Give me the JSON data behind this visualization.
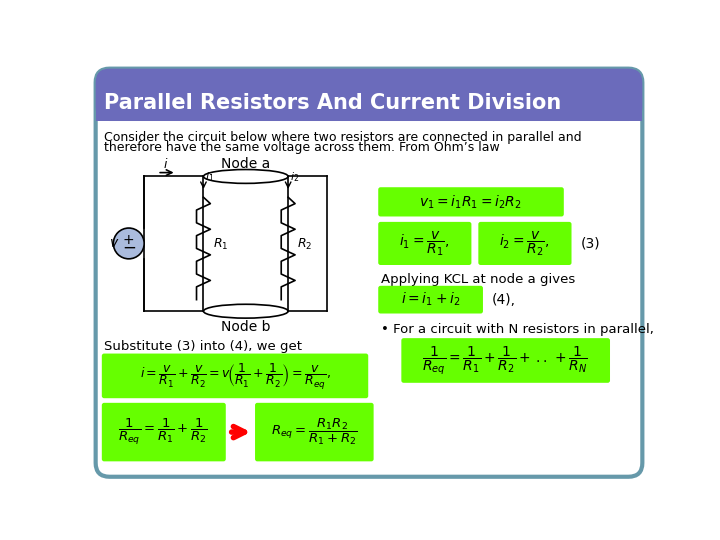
{
  "title": "Parallel Resistors And Current Division",
  "title_bg_color": "#6B6BBB",
  "title_text_color": "#FFFFFF",
  "body_bg_color": "#FFFFFF",
  "border_color": "#6699AA",
  "green_box_color": "#66FF00",
  "intro_text_line1": "Consider the circuit below where two resistors are connected in parallel and",
  "intro_text_line2": "therefore have the same voltage across them. From Ohm’s law",
  "node_a_label": "Node a",
  "node_b_label": "Node b",
  "substitute_text": "Substitute (3) into (4), we get",
  "applying_text": "Applying KCL at node a gives",
  "for_circuit_text": "• For a circuit with N resistors in parallel,",
  "eq_label_3": "(3)",
  "eq_label_4": "(4),"
}
